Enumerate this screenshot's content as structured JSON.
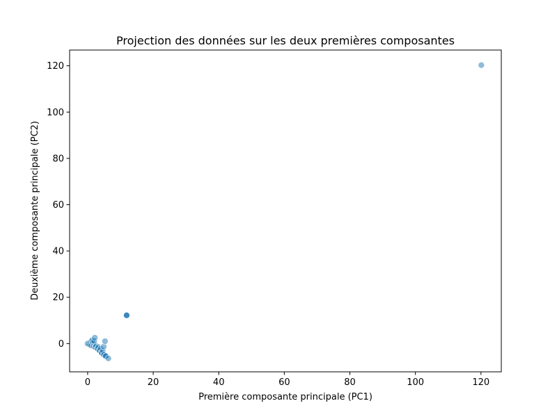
{
  "chart_data": {
    "type": "scatter",
    "title": "Projection des données sur les deux premières composantes",
    "xlabel": "Première composante principale (PC1)",
    "ylabel": "Deuxième composante principale (PC2)",
    "xlim": [
      -5.5,
      126.2
    ],
    "ylim": [
      -12.2,
      126.8
    ],
    "xticks": [
      0,
      20,
      40,
      60,
      80,
      100,
      120
    ],
    "yticks": [
      0,
      20,
      40,
      60,
      80,
      100,
      120
    ],
    "grid": false,
    "marker_color": "#1f77b4",
    "marker_alpha": 0.5,
    "points": [
      {
        "x": 120.1,
        "y": 120.3
      },
      {
        "x": 11.9,
        "y": 12.2
      },
      {
        "x": 11.9,
        "y": 12.2
      },
      {
        "x": 11.9,
        "y": 12.2
      },
      {
        "x": 0.0,
        "y": 0.0
      },
      {
        "x": 0.0,
        "y": 0.0
      },
      {
        "x": 0.0,
        "y": 0.0
      },
      {
        "x": 0.3,
        "y": 0.2
      },
      {
        "x": 0.5,
        "y": -0.3
      },
      {
        "x": 0.8,
        "y": 0.6
      },
      {
        "x": 1.0,
        "y": -0.8
      },
      {
        "x": 1.2,
        "y": 1.1
      },
      {
        "x": 1.4,
        "y": 1.4
      },
      {
        "x": 1.6,
        "y": 0.4
      },
      {
        "x": 1.8,
        "y": -1.2
      },
      {
        "x": 2.0,
        "y": 1.0
      },
      {
        "x": 2.2,
        "y": 2.5
      },
      {
        "x": 2.3,
        "y": -1.5
      },
      {
        "x": 2.3,
        "y": -1.5
      },
      {
        "x": 2.6,
        "y": -1.1
      },
      {
        "x": 3.0,
        "y": -2.1
      },
      {
        "x": 3.0,
        "y": -2.1
      },
      {
        "x": 3.3,
        "y": -1.5
      },
      {
        "x": 3.6,
        "y": -2.9
      },
      {
        "x": 3.6,
        "y": -2.9
      },
      {
        "x": 4.0,
        "y": -2.2
      },
      {
        "x": 4.3,
        "y": -4.0
      },
      {
        "x": 4.3,
        "y": -4.0
      },
      {
        "x": 4.6,
        "y": -3.0
      },
      {
        "x": 4.9,
        "y": -1.3
      },
      {
        "x": 5.0,
        "y": -4.8
      },
      {
        "x": 5.0,
        "y": -4.8
      },
      {
        "x": 5.3,
        "y": 1.0
      },
      {
        "x": 5.5,
        "y": -5.4
      },
      {
        "x": 5.5,
        "y": -5.4
      },
      {
        "x": 6.3,
        "y": -6.4
      }
    ]
  }
}
